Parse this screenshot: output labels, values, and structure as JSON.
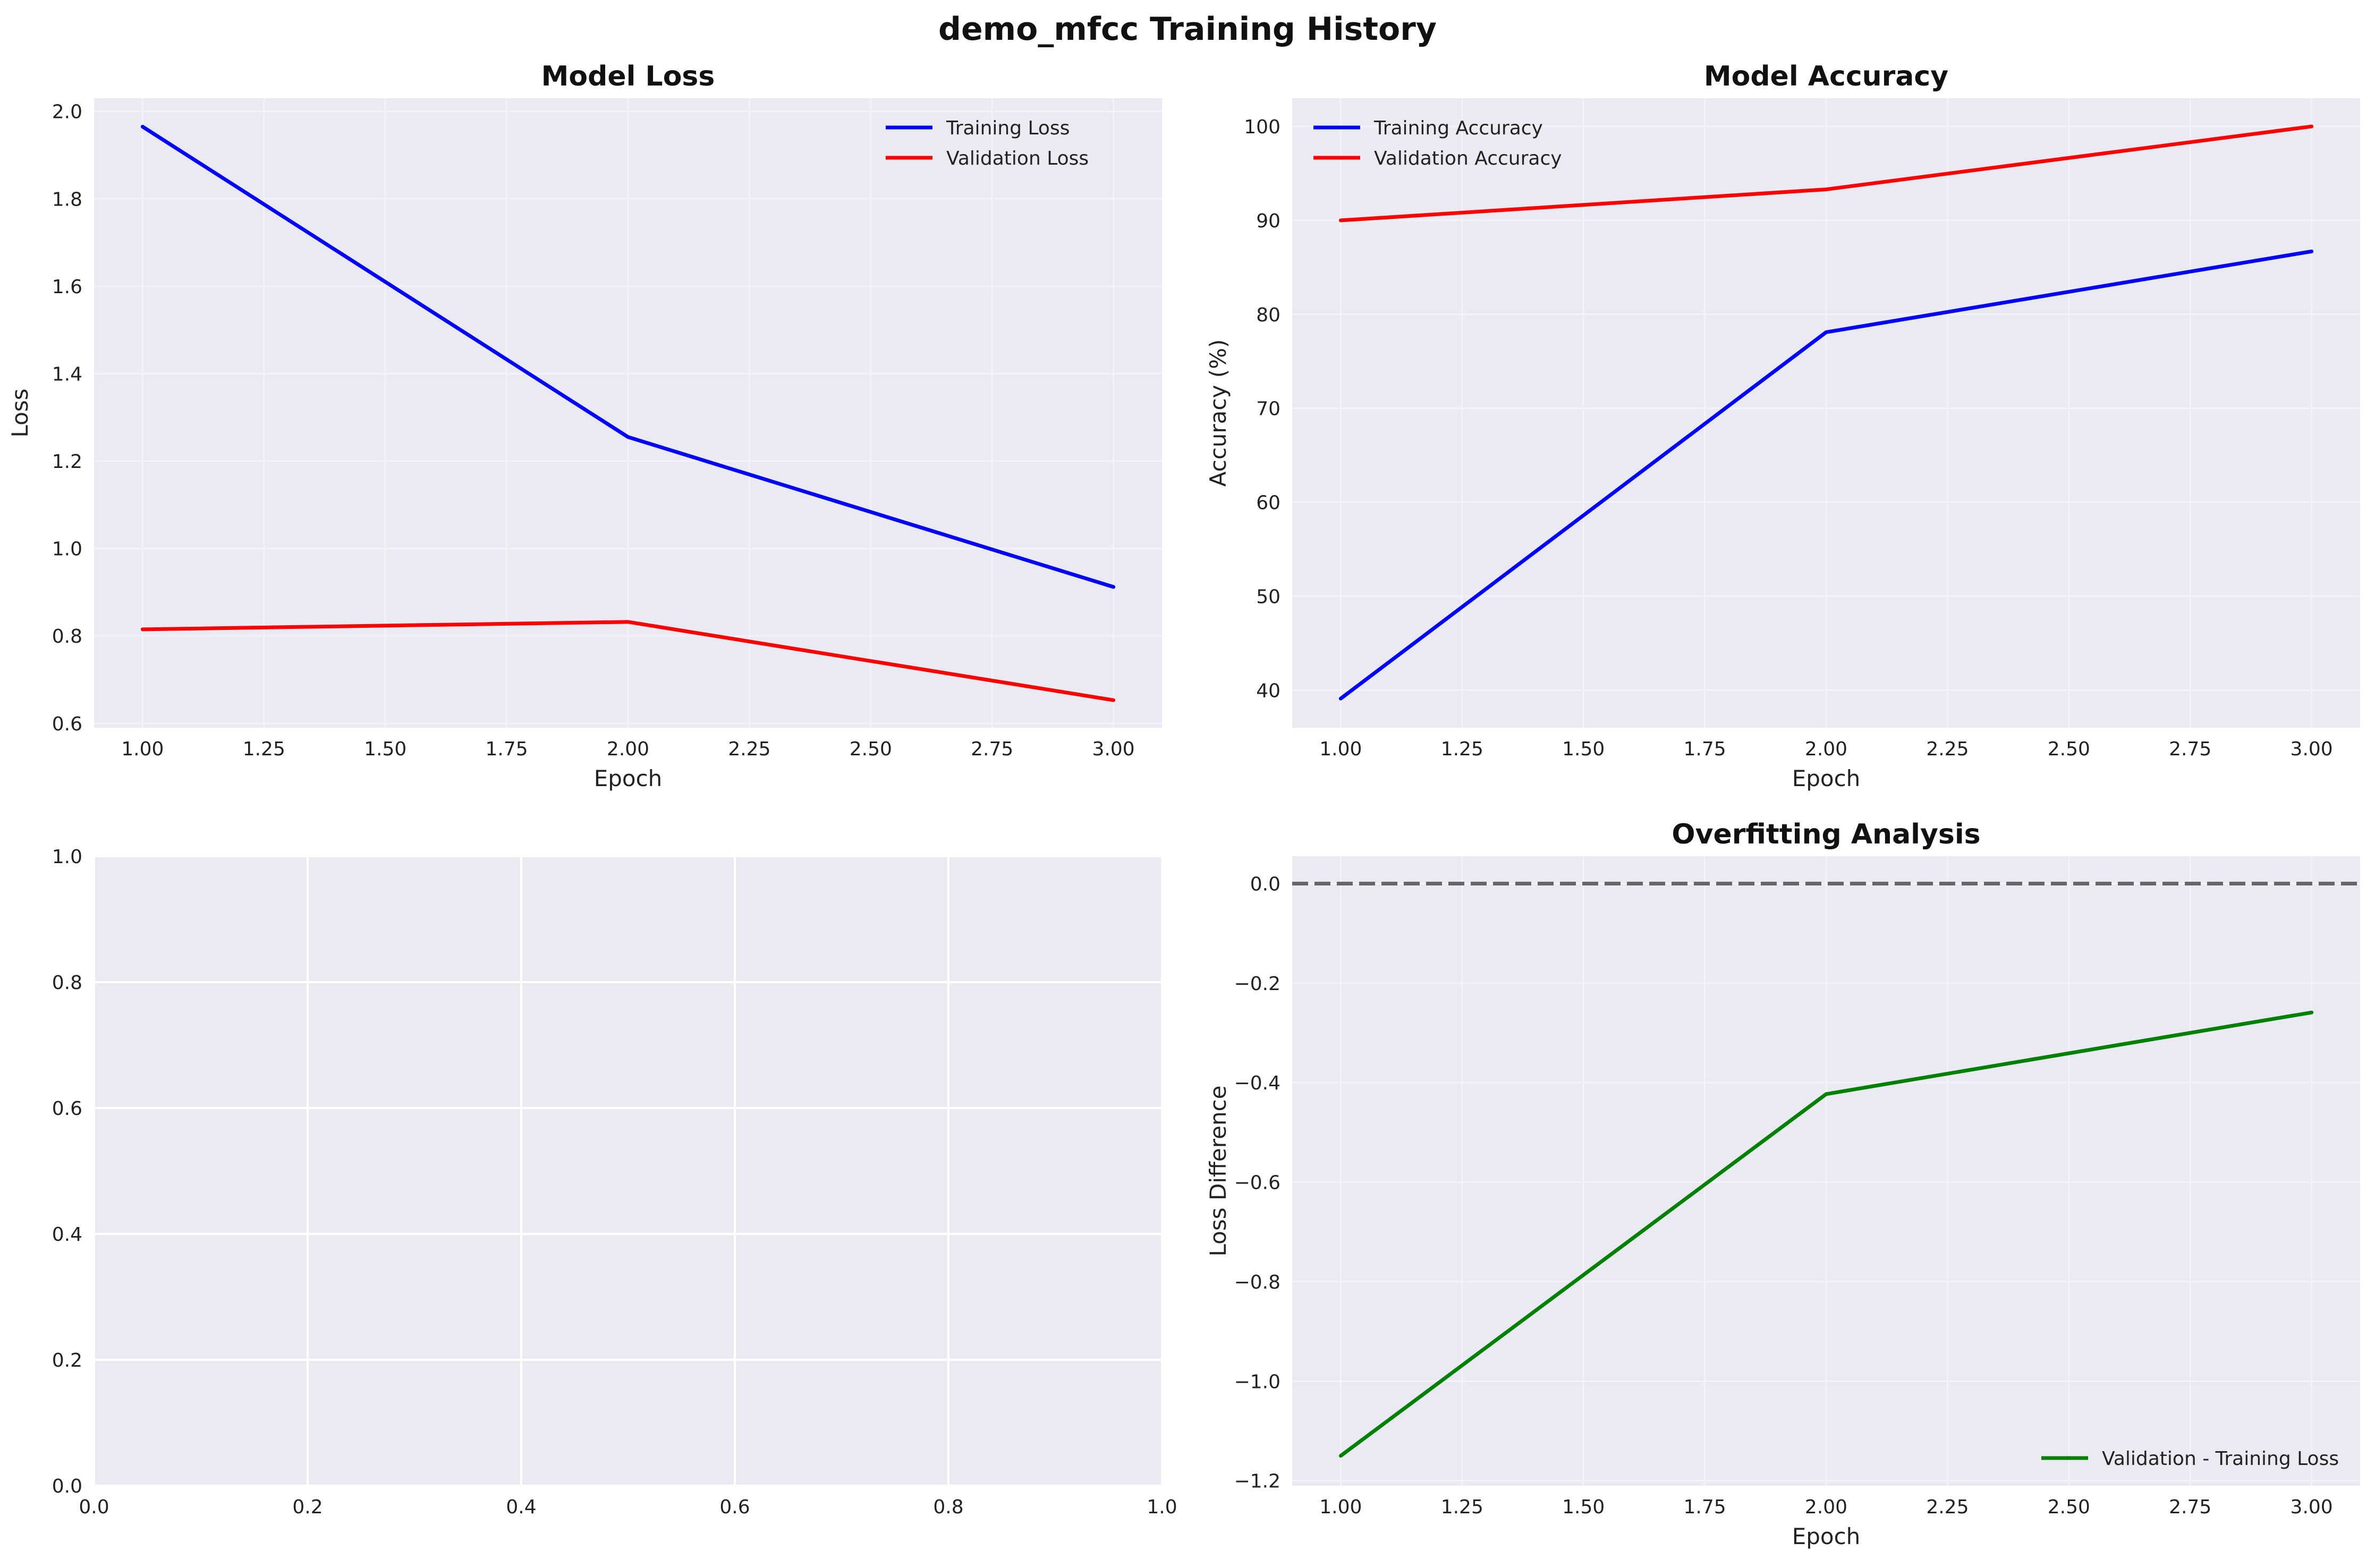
{
  "figure": {
    "title": "demo_mfcc Training History"
  },
  "chart_data": [
    {
      "id": "loss",
      "type": "line",
      "title": "Model Loss",
      "xlabel": "Epoch",
      "ylabel": "Loss",
      "xlim": [
        0.9,
        3.1
      ],
      "ylim": [
        0.59,
        2.03
      ],
      "xticks": [
        1.0,
        1.25,
        1.5,
        1.75,
        2.0,
        2.25,
        2.5,
        2.75,
        3.0
      ],
      "xtick_labels": [
        "1.00",
        "1.25",
        "1.50",
        "1.75",
        "2.00",
        "2.25",
        "2.50",
        "2.75",
        "3.00"
      ],
      "yticks": [
        0.6,
        0.8,
        1.0,
        1.2,
        1.4,
        1.6,
        1.8,
        2.0
      ],
      "ytick_labels": [
        "0.6",
        "0.8",
        "1.0",
        "1.2",
        "1.4",
        "1.6",
        "1.8",
        "2.0"
      ],
      "grid": "light",
      "legend": "top-right",
      "series": [
        {
          "name": "Training Loss",
          "color": "#0000ff",
          "x": [
            1,
            2,
            3
          ],
          "y": [
            1.965,
            1.255,
            0.912
          ]
        },
        {
          "name": "Validation Loss",
          "color": "#ff0000",
          "x": [
            1,
            2,
            3
          ],
          "y": [
            0.815,
            0.832,
            0.653
          ]
        }
      ]
    },
    {
      "id": "accuracy",
      "type": "line",
      "title": "Model Accuracy",
      "xlabel": "Epoch",
      "ylabel": "Accuracy (%)",
      "xlim": [
        0.9,
        3.1
      ],
      "ylim": [
        36,
        103
      ],
      "xticks": [
        1.0,
        1.25,
        1.5,
        1.75,
        2.0,
        2.25,
        2.5,
        2.75,
        3.0
      ],
      "xtick_labels": [
        "1.00",
        "1.25",
        "1.50",
        "1.75",
        "2.00",
        "2.25",
        "2.50",
        "2.75",
        "3.00"
      ],
      "yticks": [
        40,
        50,
        60,
        70,
        80,
        90,
        100
      ],
      "ytick_labels": [
        "40",
        "50",
        "60",
        "70",
        "80",
        "90",
        "100"
      ],
      "grid": "light",
      "legend": "top-left",
      "series": [
        {
          "name": "Training Accuracy",
          "color": "#0000ff",
          "x": [
            1,
            2,
            3
          ],
          "y": [
            39.1,
            78.1,
            86.7
          ]
        },
        {
          "name": "Validation Accuracy",
          "color": "#ff0000",
          "x": [
            1,
            2,
            3
          ],
          "y": [
            90.0,
            93.3,
            100.0
          ]
        }
      ]
    },
    {
      "id": "empty",
      "type": "line",
      "title": "",
      "xlabel": "",
      "ylabel": "",
      "xlim": [
        0,
        1
      ],
      "ylim": [
        0,
        1
      ],
      "xticks": [
        0.0,
        0.2,
        0.4,
        0.6,
        0.8,
        1.0
      ],
      "xtick_labels": [
        "0.0",
        "0.2",
        "0.4",
        "0.6",
        "0.8",
        "1.0"
      ],
      "yticks": [
        0.0,
        0.2,
        0.4,
        0.6,
        0.8,
        1.0
      ],
      "ytick_labels": [
        "0.0",
        "0.2",
        "0.4",
        "0.6",
        "0.8",
        "1.0"
      ],
      "grid": "white",
      "legend": "none",
      "series": []
    },
    {
      "id": "overfit",
      "type": "line",
      "title": "Overfitting Analysis",
      "xlabel": "Epoch",
      "ylabel": "Loss Difference",
      "xlim": [
        0.9,
        3.1
      ],
      "ylim": [
        -1.21,
        0.055
      ],
      "xticks": [
        1.0,
        1.25,
        1.5,
        1.75,
        2.0,
        2.25,
        2.5,
        2.75,
        3.0
      ],
      "xtick_labels": [
        "1.00",
        "1.25",
        "1.50",
        "1.75",
        "2.00",
        "2.25",
        "2.50",
        "2.75",
        "3.00"
      ],
      "yticks": [
        0.0,
        -0.2,
        -0.4,
        -0.6,
        -0.8,
        -1.0,
        -1.2
      ],
      "ytick_labels": [
        "0.0",
        "−0.2",
        "−0.4",
        "−0.6",
        "−0.8",
        "−1.0",
        "−1.2"
      ],
      "grid": "light",
      "legend": "bottom-right",
      "reference_line": {
        "y": 0,
        "color": "#666666",
        "style": "dashed"
      },
      "series": [
        {
          "name": "Validation - Training Loss",
          "color": "#008000",
          "x": [
            1,
            2,
            3
          ],
          "y": [
            -1.15,
            -0.423,
            -0.259
          ]
        }
      ]
    }
  ]
}
